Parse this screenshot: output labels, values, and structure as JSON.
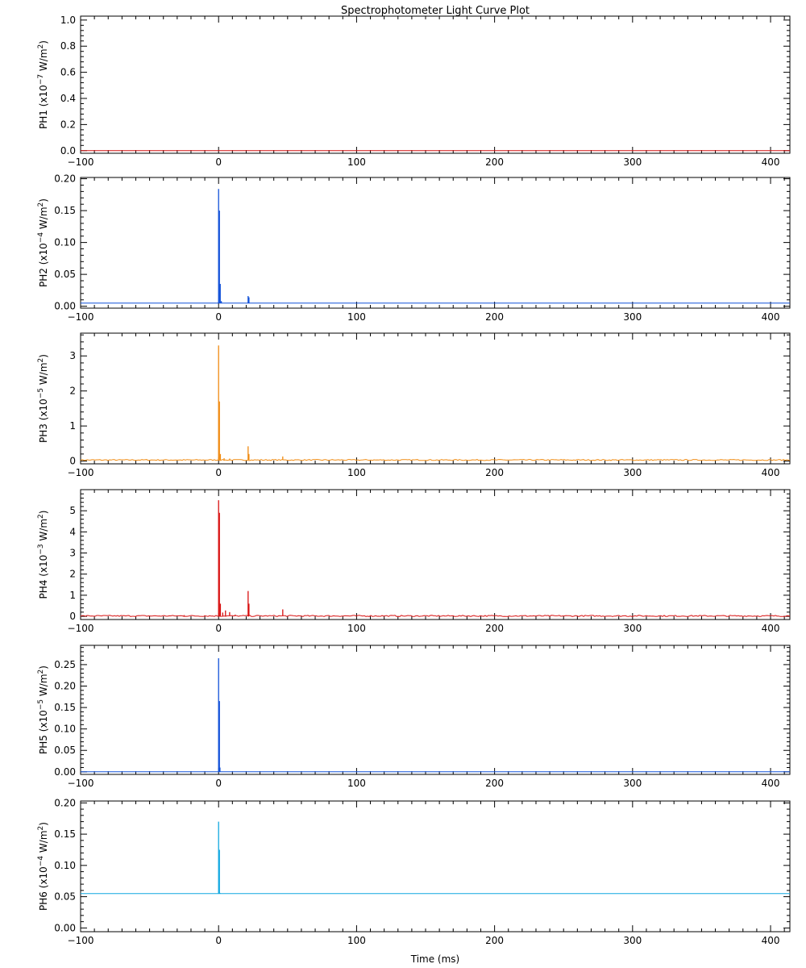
{
  "chart_data": {
    "type": "line",
    "title": "Spectrophotometer Light Curve Plot",
    "xlabel": "Time (ms)",
    "xlim": [
      -100,
      414
    ],
    "xticks": [
      -100,
      0,
      100,
      200,
      300,
      400
    ],
    "grid": false,
    "panels": [
      {
        "name": "PH1",
        "label_prefix": "PH1",
        "label_base": "(x10",
        "label_exp": "−7",
        "label_mid": " W/m",
        "label_sq": "2",
        "label_end": ")",
        "color": "#d01010",
        "ylim": [
          -0.02,
          1.03
        ],
        "yticks": [
          "0.0",
          "0.2",
          "0.4",
          "0.6",
          "0.8",
          "1.0"
        ],
        "ytick_values": [
          0,
          0.2,
          0.4,
          0.6,
          0.8,
          1.0
        ],
        "baseline": 0.0,
        "noise": 0,
        "spikes": []
      },
      {
        "name": "PH2",
        "label_prefix": "PH2",
        "label_base": "(x10",
        "label_exp": "−4",
        "label_mid": " W/m",
        "label_sq": "2",
        "label_end": ")",
        "color": "#1050d8",
        "ylim": [
          -0.003,
          0.202
        ],
        "yticks": [
          "0.00",
          "0.05",
          "0.10",
          "0.15",
          "0.20"
        ],
        "ytick_values": [
          0,
          0.05,
          0.1,
          0.15,
          0.2
        ],
        "baseline": 0.005,
        "noise": 0,
        "spikes": [
          {
            "x": 0.0,
            "y": 0.184
          },
          {
            "x": 0.6,
            "y": 0.15
          },
          {
            "x": 1.2,
            "y": 0.035
          },
          {
            "x": 2.0,
            "y": 0.008
          },
          {
            "x": 21.4,
            "y": 0.016
          },
          {
            "x": 22.0,
            "y": 0.014
          }
        ]
      },
      {
        "name": "PH3",
        "label_prefix": "PH3",
        "label_base": "(x10",
        "label_exp": "−5",
        "label_mid": " W/m",
        "label_sq": "2",
        "label_end": ")",
        "color": "#f08a10",
        "ylim": [
          -0.08,
          3.65
        ],
        "yticks": [
          "0",
          "1",
          "2",
          "3"
        ],
        "ytick_values": [
          0,
          1,
          2,
          3
        ],
        "baseline": 0.03,
        "noise": 0.015,
        "spikes": [
          {
            "x": 0.0,
            "y": 3.3
          },
          {
            "x": 0.6,
            "y": 1.7
          },
          {
            "x": 1.3,
            "y": 0.2
          },
          {
            "x": 4.0,
            "y": 0.08
          },
          {
            "x": 8.0,
            "y": 0.07
          },
          {
            "x": 21.4,
            "y": 0.42
          },
          {
            "x": 22.0,
            "y": 0.2
          },
          {
            "x": 46.5,
            "y": 0.13
          }
        ]
      },
      {
        "name": "PH4",
        "label_prefix": "PH4",
        "label_base": "(x10",
        "label_exp": "−3",
        "label_mid": " W/m",
        "label_sq": "2",
        "label_end": ")",
        "color": "#d81010",
        "ylim": [
          -0.15,
          6.0
        ],
        "yticks": [
          "0",
          "1",
          "2",
          "3",
          "4",
          "5"
        ],
        "ytick_values": [
          0,
          1,
          2,
          3,
          4,
          5
        ],
        "baseline": 0.02,
        "noise": 0.03,
        "spikes": [
          {
            "x": -25.0,
            "y": 0.06
          },
          {
            "x": -10.0,
            "y": 0.05
          },
          {
            "x": 0.0,
            "y": 5.5
          },
          {
            "x": 0.6,
            "y": 4.9
          },
          {
            "x": 1.3,
            "y": 0.6
          },
          {
            "x": 3.0,
            "y": 0.18
          },
          {
            "x": 5.0,
            "y": 0.28
          },
          {
            "x": 8.0,
            "y": 0.2
          },
          {
            "x": 12.0,
            "y": 0.08
          },
          {
            "x": 21.4,
            "y": 1.2
          },
          {
            "x": 22.0,
            "y": 0.6
          },
          {
            "x": 46.5,
            "y": 0.33
          }
        ]
      },
      {
        "name": "PH5",
        "label_prefix": "PH5",
        "label_base": "(x10",
        "label_exp": "−5",
        "label_mid": " W/m",
        "label_sq": "2",
        "label_end": ")",
        "color": "#1050d8",
        "ylim": [
          -0.006,
          0.295
        ],
        "yticks": [
          "0.00",
          "0.05",
          "0.10",
          "0.15",
          "0.20",
          "0.25"
        ],
        "ytick_values": [
          0,
          0.05,
          0.1,
          0.15,
          0.2,
          0.25
        ],
        "baseline": 0.0,
        "noise": 0,
        "spikes": [
          {
            "x": 0.0,
            "y": 0.265
          },
          {
            "x": 0.6,
            "y": 0.165
          },
          {
            "x": 1.0,
            "y": 0.01
          }
        ]
      },
      {
        "name": "PH6",
        "label_prefix": "PH6",
        "label_base": "(x10",
        "label_exp": "−4",
        "label_mid": " W/m",
        "label_sq": "2",
        "label_end": ")",
        "color": "#10a8e0",
        "ylim": [
          -0.006,
          0.203
        ],
        "yticks": [
          "0.00",
          "0.05",
          "0.10",
          "0.15",
          "0.20"
        ],
        "ytick_values": [
          0,
          0.05,
          0.1,
          0.15,
          0.2
        ],
        "baseline": 0.055,
        "noise": 0,
        "spikes": [
          {
            "x": 0.0,
            "y": 0.17
          },
          {
            "x": 0.6,
            "y": 0.125
          },
          {
            "x": 1.0,
            "y": 0.056
          }
        ]
      }
    ]
  }
}
